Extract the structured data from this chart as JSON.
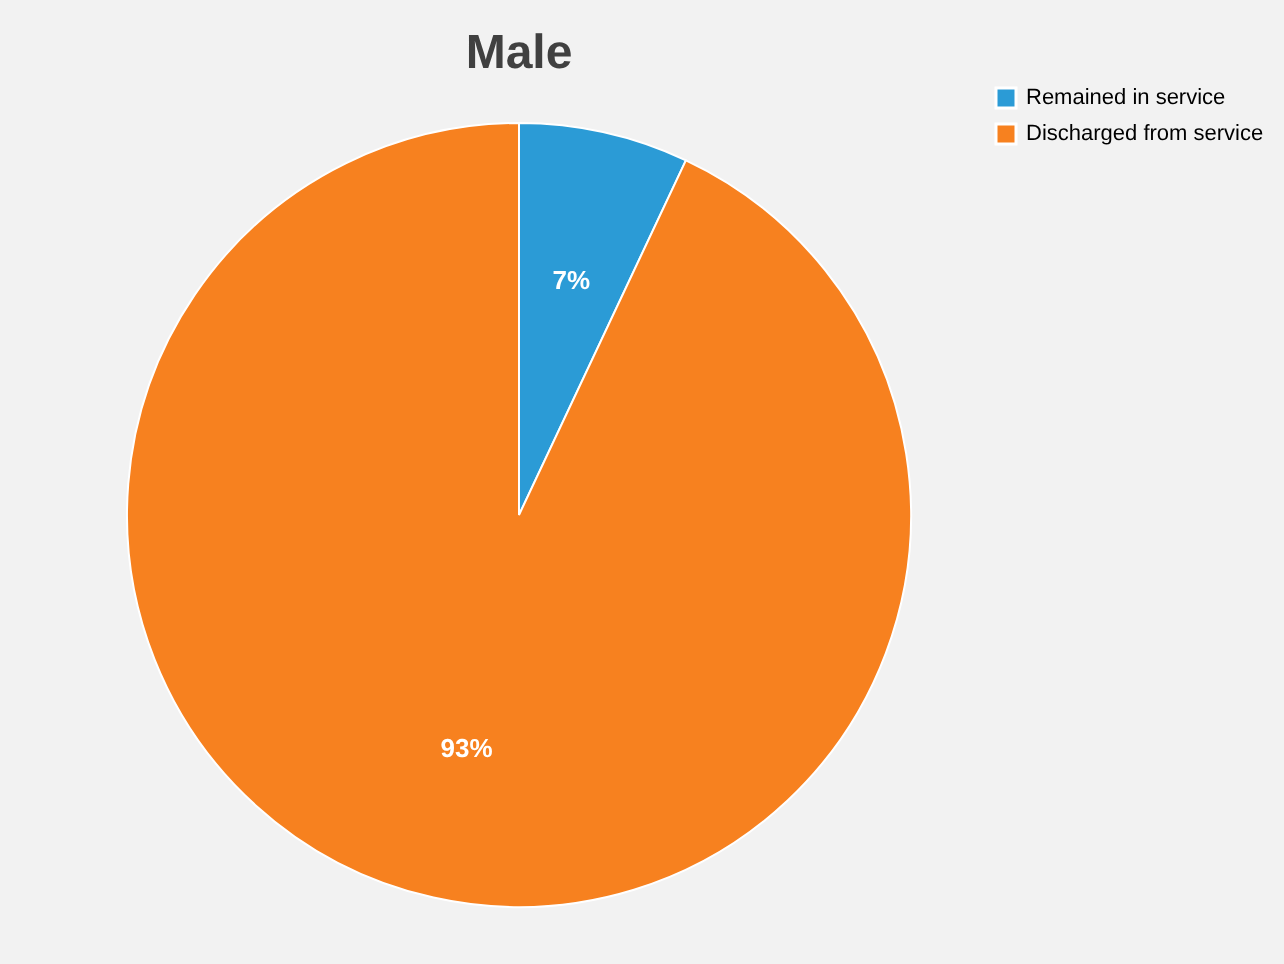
{
  "chart_data": {
    "type": "pie",
    "title": "Male",
    "categories": [
      "Remained in service",
      "Discharged from service"
    ],
    "values": [
      7,
      93
    ],
    "colors": [
      "#2b9bd6",
      "#f7811f"
    ],
    "value_labels": [
      "7%",
      "93%"
    ],
    "legend": "right"
  }
}
